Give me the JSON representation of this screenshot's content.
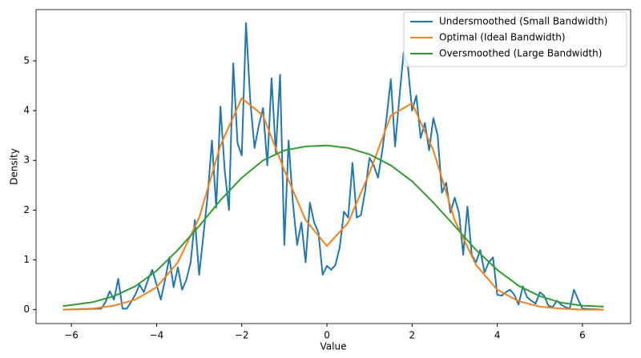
{
  "chart_data": {
    "type": "line",
    "xlabel": "Value",
    "ylabel": "Density",
    "xlim": [
      -6.83,
      7.13
    ],
    "ylim": [
      -0.28,
      6.03
    ],
    "xticks": [
      {
        "value": -6,
        "label": "−6"
      },
      {
        "value": -4,
        "label": "−4"
      },
      {
        "value": -2,
        "label": "−2"
      },
      0,
      2,
      4,
      6
    ],
    "yticks": [
      0,
      1,
      2,
      3,
      4,
      5
    ],
    "legend": "upper right",
    "series": [
      {
        "name": "Undersmoothed (Small Bandwidth)",
        "color": "#1f77b4",
        "x": [
          -6.2,
          -5.3,
          -5.2,
          -5.1,
          -5.0,
          -4.9,
          -4.8,
          -4.7,
          -4.6,
          -4.5,
          -4.4,
          -4.3,
          -4.2,
          -4.1,
          -4.0,
          -3.9,
          -3.8,
          -3.7,
          -3.6,
          -3.5,
          -3.4,
          -3.3,
          -3.2,
          -3.1,
          -3.0,
          -2.9,
          -2.8,
          -2.7,
          -2.6,
          -2.5,
          -2.4,
          -2.3,
          -2.2,
          -2.1,
          -2.0,
          -1.9,
          -1.8,
          -1.7,
          -1.6,
          -1.5,
          -1.4,
          -1.3,
          -1.2,
          -1.1,
          -1.0,
          -0.9,
          -0.8,
          -0.7,
          -0.6,
          -0.5,
          -0.4,
          -0.3,
          -0.2,
          -0.1,
          0.0,
          0.1,
          0.2,
          0.3,
          0.4,
          0.5,
          0.6,
          0.7,
          0.8,
          0.9,
          1.0,
          1.1,
          1.2,
          1.3,
          1.4,
          1.5,
          1.6,
          1.7,
          1.8,
          1.9,
          2.0,
          2.1,
          2.2,
          2.3,
          2.4,
          2.5,
          2.6,
          2.7,
          2.8,
          2.9,
          3.0,
          3.1,
          3.2,
          3.3,
          3.4,
          3.5,
          3.6,
          3.7,
          3.8,
          3.9,
          4.0,
          4.1,
          4.2,
          4.3,
          4.4,
          4.5,
          4.6,
          4.7,
          4.8,
          4.9,
          5.0,
          5.1,
          5.2,
          5.3,
          5.4,
          5.5,
          5.6,
          5.7,
          5.8,
          5.9,
          6.0,
          6.5
        ],
        "values": [
          0,
          0.02,
          0.15,
          0.37,
          0.2,
          0.62,
          0.02,
          0.02,
          0.15,
          0.3,
          0.5,
          0.35,
          0.6,
          0.8,
          0.5,
          0.2,
          0.6,
          1.05,
          0.45,
          0.85,
          0.4,
          0.6,
          0.95,
          1.8,
          0.7,
          1.5,
          2.3,
          3.4,
          2.05,
          4.08,
          2.8,
          2.0,
          4.95,
          3.35,
          3.1,
          5.76,
          4.2,
          3.25,
          3.7,
          4.05,
          2.9,
          4.65,
          3.15,
          4.72,
          1.3,
          3.4,
          2.15,
          1.3,
          1.75,
          0.95,
          2.15,
          1.75,
          1.55,
          0.7,
          0.88,
          0.8,
          0.9,
          1.25,
          1.97,
          1.85,
          2.95,
          1.85,
          1.9,
          2.4,
          3.05,
          2.9,
          2.65,
          3.2,
          3.85,
          4.63,
          3.28,
          4.25,
          5.17,
          4.9,
          4.0,
          4.3,
          3.45,
          3.75,
          3.2,
          3.85,
          3.5,
          2.35,
          2.55,
          1.95,
          2.25,
          1.95,
          1.1,
          2.07,
          1.1,
          0.95,
          1.2,
          0.75,
          0.95,
          1.05,
          0.3,
          0.28,
          0.35,
          0.4,
          0.3,
          0.1,
          0.47,
          0.25,
          0.18,
          0.12,
          0.35,
          0.28,
          0.08,
          0.05,
          0.18,
          0.1,
          0.05,
          0.02,
          0.4,
          0.2,
          0.02,
          0
        ]
      },
      {
        "name": "Optimal (Ideal Bandwidth)",
        "color": "#ff7f0e",
        "x": [
          -6.2,
          -5.5,
          -5.0,
          -4.5,
          -4.0,
          -3.5,
          -3.0,
          -2.5,
          -2.0,
          -1.5,
          -1.0,
          -0.5,
          0.0,
          0.5,
          1.0,
          1.5,
          2.0,
          2.5,
          3.0,
          3.5,
          4.0,
          4.5,
          5.0,
          5.5,
          6.0,
          6.5
        ],
        "values": [
          0,
          0.02,
          0.08,
          0.2,
          0.45,
          0.95,
          1.85,
          3.3,
          4.25,
          3.9,
          2.8,
          1.8,
          1.28,
          1.75,
          2.75,
          3.9,
          4.15,
          3.2,
          1.8,
          0.9,
          0.4,
          0.17,
          0.06,
          0.02,
          0,
          0
        ]
      },
      {
        "name": "Oversmoothed (Large Bandwidth)",
        "color": "#2ca02c",
        "x": [
          -6.2,
          -5.5,
          -5.0,
          -4.5,
          -4.0,
          -3.5,
          -3.0,
          -2.5,
          -2.0,
          -1.5,
          -1.0,
          -0.5,
          0.0,
          0.5,
          1.0,
          1.5,
          2.0,
          2.5,
          3.0,
          3.5,
          4.0,
          4.5,
          5.0,
          5.5,
          6.0,
          6.5
        ],
        "values": [
          0.07,
          0.15,
          0.27,
          0.47,
          0.78,
          1.2,
          1.68,
          2.2,
          2.65,
          3.0,
          3.2,
          3.28,
          3.3,
          3.25,
          3.12,
          2.9,
          2.58,
          2.15,
          1.68,
          1.2,
          0.8,
          0.48,
          0.27,
          0.14,
          0.08,
          0.06
        ]
      }
    ]
  }
}
